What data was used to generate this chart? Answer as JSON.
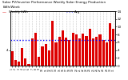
{
  "title": "Solar PV/Inverter Performance Weekly Solar Energy Production",
  "title_line2": "kWh/Week",
  "bar_values": [
    3.8,
    1.5,
    1.0,
    4.5,
    1.8,
    0.5,
    7.0,
    8.5,
    2.2,
    5.0,
    5.5,
    4.0,
    11.5,
    6.0,
    7.5,
    9.0,
    7.2,
    6.5,
    8.5,
    8.0,
    7.0,
    8.2,
    7.6,
    9.5,
    7.0,
    7.5,
    8.0,
    6.5,
    6.0,
    11.0,
    9.5
  ],
  "bar_color": "#dd0000",
  "reference_line": 6.5,
  "reference_color": "#0000ff",
  "background_color": "#ffffff",
  "grid_color": "#999999",
  "yticks_right": [
    0,
    2,
    4,
    6,
    8,
    10,
    12,
    14
  ],
  "ytick_left_val": 4,
  "ylim": [
    0,
    14
  ],
  "xlabels": [
    "1",
    "2",
    "3",
    "4",
    "5",
    "6",
    "7",
    "8",
    "9",
    "10",
    "11",
    "12",
    "13",
    "14",
    "15",
    "16",
    "17",
    "18",
    "19",
    "20",
    "21",
    "22",
    "23",
    "24",
    "25",
    "26",
    "27",
    "28",
    "29",
    "30",
    "31"
  ]
}
